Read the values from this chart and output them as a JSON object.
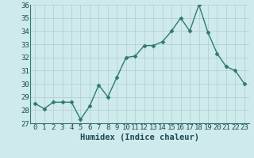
{
  "hours": [
    0,
    1,
    2,
    3,
    4,
    5,
    6,
    7,
    8,
    9,
    10,
    11,
    12,
    13,
    14,
    15,
    16,
    17,
    18,
    19,
    20,
    21,
    22,
    23
  ],
  "values": [
    28.5,
    28.1,
    28.6,
    28.6,
    28.6,
    27.3,
    28.3,
    29.9,
    29.0,
    30.5,
    32.0,
    32.1,
    32.9,
    32.9,
    33.2,
    34.0,
    35.0,
    34.0,
    36.0,
    33.9,
    32.3,
    31.3,
    31.0,
    30.0
  ],
  "line_color": "#2e7b6e",
  "marker": "D",
  "marker_size": 2.5,
  "bg_color": "#ceeaea",
  "grid_color": "#b0cccc",
  "xlabel": "Humidex (Indice chaleur)",
  "ylim_min": 27,
  "ylim_max": 36,
  "yticks": [
    27,
    28,
    29,
    30,
    31,
    32,
    33,
    34,
    35,
    36
  ],
  "xticks": [
    0,
    1,
    2,
    3,
    4,
    5,
    6,
    7,
    8,
    9,
    10,
    11,
    12,
    13,
    14,
    15,
    16,
    17,
    18,
    19,
    20,
    21,
    22,
    23
  ],
  "xlabel_fontsize": 7.5,
  "tick_fontsize": 6.5,
  "linewidth": 1.0,
  "spine_color": "#2e7b6e",
  "text_color": "#1a4a5a"
}
